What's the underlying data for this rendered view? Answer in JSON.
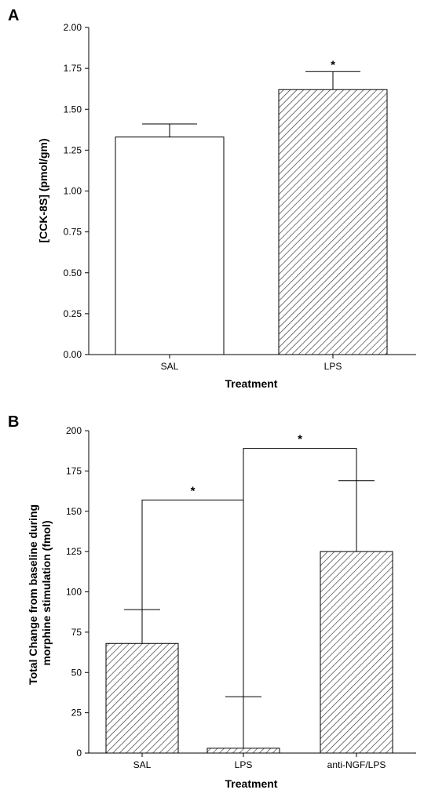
{
  "chart_data": [
    {
      "panel_label": "A",
      "type": "bar",
      "categories": [
        "SAL",
        "LPS"
      ],
      "values": [
        1.33,
        1.62
      ],
      "errors": [
        0.08,
        0.11
      ],
      "fill": [
        "open",
        "hatched"
      ],
      "xlabel": "Treatment",
      "ylabel": "[CCK-8S] (pmol/gm)",
      "ylim": [
        0,
        2.0
      ],
      "yticks": [
        "0.00",
        "0.25",
        "0.50",
        "0.75",
        "1.00",
        "1.25",
        "1.50",
        "1.75",
        "2.00"
      ],
      "significance": [
        {
          "bar": 1,
          "label": "*"
        }
      ]
    },
    {
      "panel_label": "B",
      "type": "bar",
      "categories": [
        "SAL",
        "LPS",
        "anti-NGF/LPS"
      ],
      "values": [
        68,
        3,
        125
      ],
      "errors": [
        21,
        32,
        44
      ],
      "fill": [
        "hatched",
        "hatched",
        "hatched"
      ],
      "xlabel": "Treatment",
      "ylabel_lines": [
        "Total Change from baseline during",
        "morphine stimulation (fmol)"
      ],
      "ylim": [
        0,
        200
      ],
      "yticks": [
        "0",
        "25",
        "50",
        "75",
        "100",
        "125",
        "150",
        "175",
        "200"
      ],
      "brackets": [
        {
          "from": 0,
          "to": 1,
          "level": 157,
          "label": "*"
        },
        {
          "from": 1,
          "to": 2,
          "level": 189,
          "label": "*"
        }
      ]
    }
  ]
}
